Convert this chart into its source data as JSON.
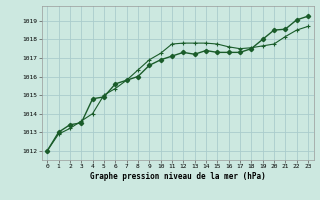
{
  "title": "Graphe pression niveau de la mer (hPa)",
  "bg_color": "#cce8e0",
  "grid_color": "#aacccc",
  "line_color": "#1a5c2a",
  "xlim": [
    -0.5,
    23.5
  ],
  "ylim": [
    1011.5,
    1019.8
  ],
  "yticks": [
    1012,
    1013,
    1014,
    1015,
    1016,
    1017,
    1018,
    1019
  ],
  "xticks": [
    0,
    1,
    2,
    3,
    4,
    5,
    6,
    7,
    8,
    9,
    10,
    11,
    12,
    13,
    14,
    15,
    16,
    17,
    18,
    19,
    20,
    21,
    22,
    23
  ],
  "line1_x": [
    0,
    1,
    2,
    3,
    4,
    5,
    6,
    7,
    8,
    9,
    10,
    11,
    12,
    13,
    14,
    15,
    16,
    17,
    18,
    19,
    20,
    21,
    22,
    23
  ],
  "line1_y": [
    1012.0,
    1012.9,
    1013.2,
    1013.6,
    1014.0,
    1015.0,
    1015.35,
    1015.8,
    1016.35,
    1016.9,
    1017.25,
    1017.75,
    1017.8,
    1017.8,
    1017.8,
    1017.75,
    1017.6,
    1017.5,
    1017.55,
    1017.65,
    1017.75,
    1018.15,
    1018.5,
    1018.7
  ],
  "line2_x": [
    0,
    1,
    2,
    3,
    4,
    5,
    6,
    7,
    8,
    9,
    10,
    11,
    12,
    13,
    14,
    15,
    16,
    17,
    18,
    19,
    20,
    21,
    22,
    23
  ],
  "line2_y": [
    1012.0,
    1013.0,
    1013.4,
    1013.5,
    1014.8,
    1014.9,
    1015.6,
    1015.8,
    1016.0,
    1016.6,
    1016.9,
    1017.1,
    1017.3,
    1017.2,
    1017.4,
    1017.3,
    1017.3,
    1017.3,
    1017.5,
    1018.0,
    1018.5,
    1018.55,
    1019.05,
    1019.25
  ]
}
